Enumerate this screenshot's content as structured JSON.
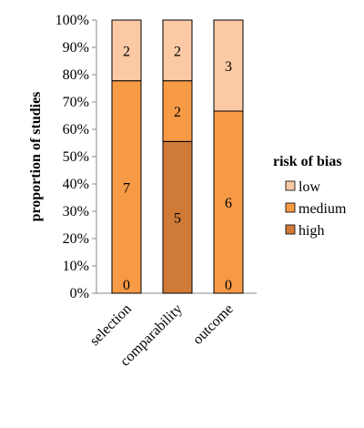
{
  "chart_data": {
    "type": "bar",
    "stacked": true,
    "normalized": true,
    "categories": [
      "selection",
      "comparability",
      "outcome"
    ],
    "series": [
      {
        "name": "high",
        "values": [
          0,
          5,
          0
        ],
        "color": "#d07a38"
      },
      {
        "name": "medium",
        "values": [
          7,
          2,
          6
        ],
        "color": "#f79a46"
      },
      {
        "name": "low",
        "values": [
          2,
          2,
          3
        ],
        "color": "#fbc9a4"
      }
    ],
    "ylabel": "proportion of studies",
    "xlabel": "",
    "ylim": [
      0,
      100
    ],
    "ytick_labels": [
      "0%",
      "10%",
      "20%",
      "30%",
      "40%",
      "50%",
      "60%",
      "70%",
      "80%",
      "90%",
      "100%"
    ],
    "legend": {
      "title": "risk of bias",
      "placement": "right",
      "order": [
        "low",
        "medium",
        "high"
      ]
    },
    "grid": false
  }
}
